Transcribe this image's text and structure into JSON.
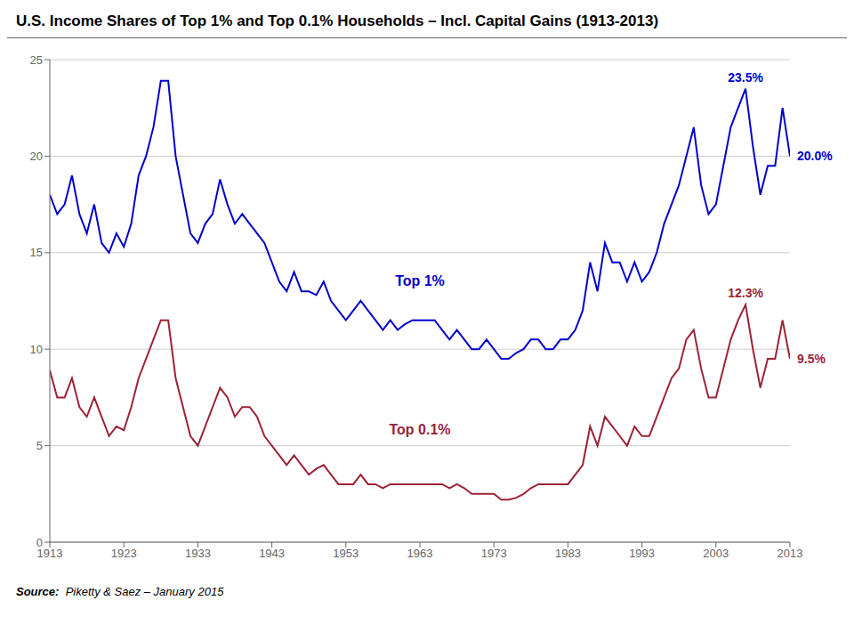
{
  "chart_data": {
    "type": "line",
    "title": "U.S. Income Shares of Top 1% and Top 0.1% Households – Incl. Capital Gains (1913-2013)",
    "source_label": "Source:",
    "source": "  Piketty & Saez – January 2015",
    "x": [
      1913,
      1914,
      1915,
      1916,
      1917,
      1918,
      1919,
      1920,
      1921,
      1922,
      1923,
      1924,
      1925,
      1926,
      1927,
      1928,
      1929,
      1930,
      1931,
      1932,
      1933,
      1934,
      1935,
      1936,
      1937,
      1938,
      1939,
      1940,
      1941,
      1942,
      1943,
      1944,
      1945,
      1946,
      1947,
      1948,
      1949,
      1950,
      1951,
      1952,
      1953,
      1954,
      1955,
      1956,
      1957,
      1958,
      1959,
      1960,
      1961,
      1962,
      1963,
      1964,
      1965,
      1966,
      1967,
      1968,
      1969,
      1970,
      1971,
      1972,
      1973,
      1974,
      1975,
      1976,
      1977,
      1978,
      1979,
      1980,
      1981,
      1982,
      1983,
      1984,
      1985,
      1986,
      1987,
      1988,
      1989,
      1990,
      1991,
      1992,
      1993,
      1994,
      1995,
      1996,
      1997,
      1998,
      1999,
      2000,
      2001,
      2002,
      2003,
      2004,
      2005,
      2006,
      2007,
      2008,
      2009,
      2010,
      2011,
      2012,
      2013
    ],
    "series": [
      {
        "name": "Top 1%",
        "color": "#0000CC",
        "label_x": 1963,
        "label_y": 13.2,
        "values": [
          18.0,
          17.0,
          17.5,
          19.0,
          17.0,
          16.0,
          17.5,
          15.5,
          15.0,
          16.0,
          15.3,
          16.5,
          19.0,
          20.0,
          21.5,
          23.9,
          23.9,
          20.0,
          18.0,
          16.0,
          15.5,
          16.5,
          17.0,
          18.8,
          17.5,
          16.5,
          17.0,
          16.5,
          16.0,
          15.5,
          14.5,
          13.5,
          13.0,
          14.0,
          13.0,
          13.0,
          12.8,
          13.5,
          12.5,
          12.0,
          11.5,
          12.0,
          12.5,
          12.0,
          11.5,
          11.0,
          11.5,
          11.0,
          11.3,
          11.5,
          11.5,
          11.5,
          11.5,
          11.0,
          10.5,
          11.0,
          10.5,
          10.0,
          10.0,
          10.5,
          10.0,
          9.5,
          9.5,
          9.8,
          10.0,
          10.5,
          10.5,
          10.0,
          10.0,
          10.5,
          10.5,
          11.0,
          12.0,
          14.5,
          13.0,
          15.5,
          14.5,
          14.5,
          13.5,
          14.5,
          13.5,
          14.0,
          15.0,
          16.5,
          17.5,
          18.5,
          20.0,
          21.5,
          18.5,
          17.0,
          17.5,
          19.5,
          21.5,
          22.5,
          23.5,
          20.5,
          18.0,
          19.5,
          19.5,
          22.5,
          20.0
        ]
      },
      {
        "name": "Top 0.1%",
        "color": "#9B2335",
        "label_x": 1963,
        "label_y": 5.5,
        "values": [
          8.9,
          7.5,
          7.5,
          8.5,
          7.0,
          6.5,
          7.5,
          6.5,
          5.5,
          6.0,
          5.8,
          7.0,
          8.5,
          9.5,
          10.5,
          11.5,
          11.5,
          8.5,
          7.0,
          5.5,
          5.0,
          6.0,
          7.0,
          8.0,
          7.5,
          6.5,
          7.0,
          7.0,
          6.5,
          5.5,
          5.0,
          4.5,
          4.0,
          4.5,
          4.0,
          3.5,
          3.8,
          4.0,
          3.5,
          3.0,
          3.0,
          3.0,
          3.5,
          3.0,
          3.0,
          2.8,
          3.0,
          3.0,
          3.0,
          3.0,
          3.0,
          3.0,
          3.0,
          3.0,
          2.8,
          3.0,
          2.8,
          2.5,
          2.5,
          2.5,
          2.5,
          2.2,
          2.2,
          2.3,
          2.5,
          2.8,
          3.0,
          3.0,
          3.0,
          3.0,
          3.0,
          3.5,
          4.0,
          6.0,
          5.0,
          6.5,
          6.0,
          5.5,
          5.0,
          6.0,
          5.5,
          5.5,
          6.5,
          7.5,
          8.5,
          9.0,
          10.5,
          11.0,
          9.0,
          7.5,
          7.5,
          9.0,
          10.5,
          11.5,
          12.3,
          10.0,
          8.0,
          9.5,
          9.5,
          11.5,
          9.5
        ]
      }
    ],
    "annotations": [
      {
        "text": "23.5%",
        "x": 2007,
        "y": 23.5,
        "color": "#0000CC"
      },
      {
        "text": "12.3%",
        "x": 2007,
        "y": 12.3,
        "color": "#9B2335"
      },
      {
        "text": "20.0%",
        "x": 2013,
        "y": 20.0,
        "color": "#0000CC"
      },
      {
        "text": "9.5%",
        "x": 2013,
        "y": 9.5,
        "color": "#9B2335"
      }
    ],
    "xlim": [
      1913,
      2013
    ],
    "ylim": [
      0,
      25
    ],
    "xticks": [
      1913,
      1923,
      1933,
      1943,
      1953,
      1963,
      1973,
      1983,
      1993,
      2003,
      2013
    ],
    "yticks": [
      0,
      5,
      10,
      15,
      20,
      25
    ],
    "grid": true
  }
}
